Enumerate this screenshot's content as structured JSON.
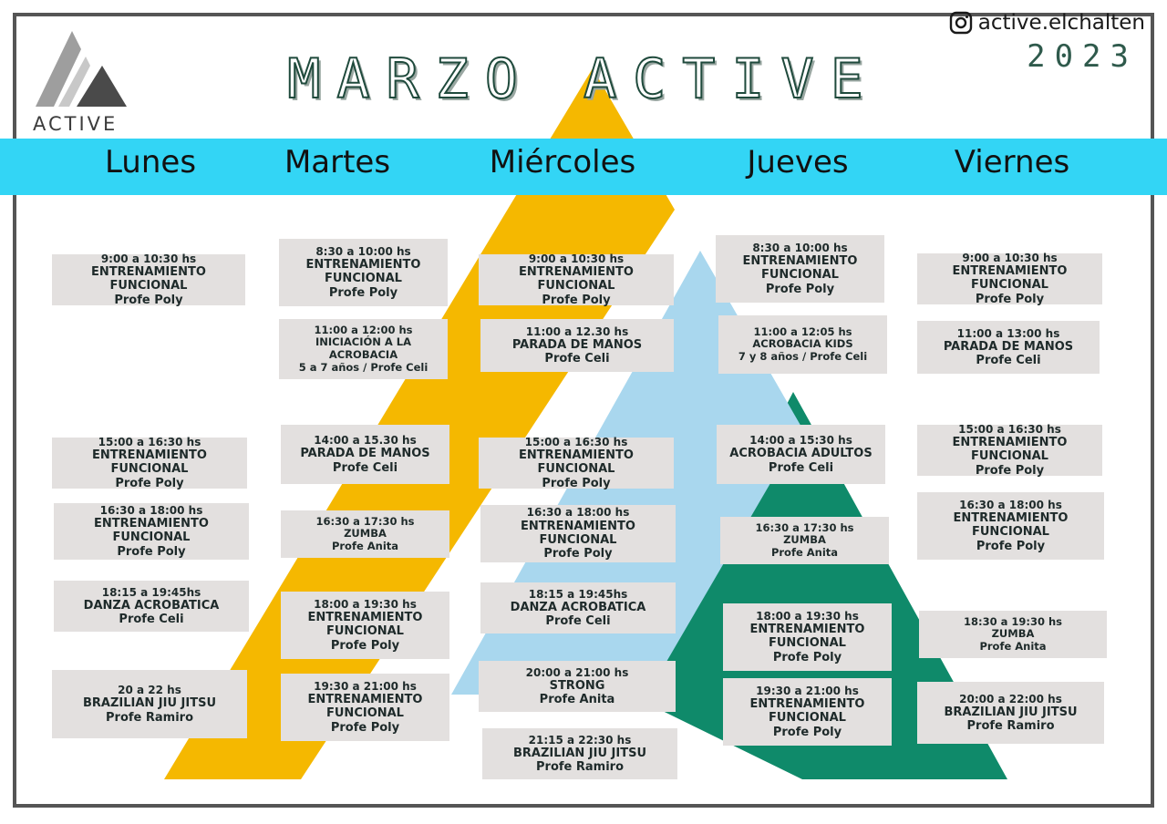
{
  "header": {
    "title": "MARZO ACTIVE",
    "instagram": "active.elchalten",
    "year": "2023",
    "logo_text": "ACTIVE"
  },
  "days": [
    "Lunes",
    "Martes",
    "Miércoles",
    "Jueves",
    "Viernes"
  ],
  "colors": {
    "band": "#33d5f5",
    "yellow": "#f5b800",
    "green": "#0f8a6a",
    "lightblue": "#a9d7ee",
    "card": "#e3e0df"
  },
  "classes": {
    "lunes": [
      {
        "time": "9:00 a 10:30 hs",
        "name": "ENTRENAMIENTO FUNCIONAL",
        "profe": "Profe Poly"
      },
      {
        "time": "15:00 a 16:30 hs",
        "name": "ENTRENAMIENTO FUNCIONAL",
        "profe": "Profe Poly"
      },
      {
        "time": "16:30 a 18:00 hs",
        "name": "ENTRENAMIENTO FUNCIONAL",
        "profe": "Profe Poly"
      },
      {
        "time": "18:15 a 19:45hs",
        "name": "DANZA ACROBATICA",
        "profe": "Profe Celi"
      },
      {
        "time": "20 a 22 hs",
        "name": "BRAZILIAN JIU JITSU",
        "profe": "Profe Ramiro"
      }
    ],
    "martes": [
      {
        "time": "8:30 a 10:00 hs",
        "name1": "ENTRENAMIENTO",
        "name2": "FUNCIONAL",
        "profe": "Profe Poly"
      },
      {
        "time": "11:00 a 12:00 hs",
        "name1": "INICIACIÓN A LA",
        "name2": "ACROBACIA",
        "profe": "5 a 7 años / Profe Celi"
      },
      {
        "time": "14:00 a 15.30 hs",
        "name": "PARADA DE MANOS",
        "profe": "Profe Celi"
      },
      {
        "time": "16:30 a 17:30 hs",
        "name": "ZUMBA",
        "profe": "Profe Anita"
      },
      {
        "time": "18:00 a 19:30 hs",
        "name1": "ENTRENAMIENTO",
        "name2": "FUNCIONAL",
        "profe": "Profe Poly"
      },
      {
        "time": "19:30 a 21:00 hs",
        "name1": "ENTRENAMIENTO",
        "name2": "FUNCIONAL",
        "profe": "Profe Poly"
      }
    ],
    "miercoles": [
      {
        "time": "9:00 a 10:30 hs",
        "name": "ENTRENAMIENTO FUNCIONAL",
        "profe": "Profe Poly"
      },
      {
        "time": "11:00 a 12.30 hs",
        "name": "PARADA DE MANOS",
        "profe": "Profe Celi"
      },
      {
        "time": "15:00 a 16:30 hs",
        "name": "ENTRENAMIENTO FUNCIONAL",
        "profe": "Profe Poly"
      },
      {
        "time": "16:30 a 18:00 hs",
        "name": "ENTRENAMIENTO FUNCIONAL",
        "profe": "Profe Poly"
      },
      {
        "time": "18:15 a 19:45hs",
        "name": "DANZA ACROBATICA",
        "profe": "Profe Celi"
      },
      {
        "time": "20:00 a 21:00 hs",
        "name": "STRONG",
        "profe": "Profe Anita"
      },
      {
        "time": "21:15 a 22:30 hs",
        "name": "BRAZILIAN JIU JITSU",
        "profe": "Profe Ramiro"
      }
    ],
    "jueves": [
      {
        "time": "8:30 a 10:00 hs",
        "name1": "ENTRENAMIENTO",
        "name2": "FUNCIONAL",
        "profe": "Profe Poly"
      },
      {
        "time": "11:00 a 12:05 hs",
        "name": "ACROBACIA KIDS",
        "profe": "7 y 8 años / Profe Celi"
      },
      {
        "time": "14:00 a 15:30 hs",
        "name": "ACROBACIA ADULTOS",
        "profe": "Profe Celi"
      },
      {
        "time": "16:30 a 17:30 hs",
        "name": "ZUMBA",
        "profe": "Profe Anita"
      },
      {
        "time": "18:00 a 19:30 hs",
        "name1": "ENTRENAMIENTO",
        "name2": "FUNCIONAL",
        "profe": "Profe Poly"
      },
      {
        "time": "19:30 a 21:00 hs",
        "name1": "ENTRENAMIENTO",
        "name2": "FUNCIONAL",
        "profe": "Profe Poly"
      }
    ],
    "viernes": [
      {
        "time": "9:00 a 10:30 hs",
        "name": "ENTRENAMIENTO FUNCIONAL",
        "profe": "Profe Poly"
      },
      {
        "time": "11:00 a 13:00 hs",
        "name": "PARADA DE MANOS",
        "profe": "Profe Celi"
      },
      {
        "time": "15:00 a 16:30 hs",
        "name": "ENTRENAMIENTO FUNCIONAL",
        "profe": "Profe Poly"
      },
      {
        "time": "16:30 a 18:00 hs",
        "name": "ENTRENAMIENTO FUNCIONAL",
        "profe": "Profe Poly"
      },
      {
        "time": "18:30 a 19:30 hs",
        "name": "ZUMBA",
        "profe": "Profe Anita"
      },
      {
        "time": "20:00 a 22:00 hs",
        "name": "BRAZILIAN JIU JITSU",
        "profe": "Profe Ramiro"
      }
    ]
  }
}
